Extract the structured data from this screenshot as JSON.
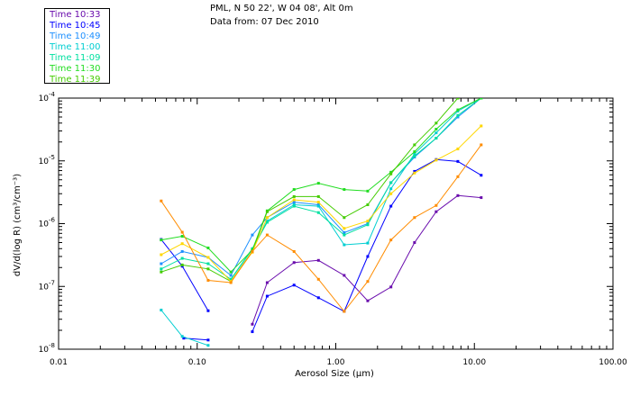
{
  "header": {
    "location": "PML, N 50 22', W 04 08', Alt 0m",
    "data_from": "Data from: 07 Dec 2010"
  },
  "colors": {
    "axis": "#000000",
    "plot_background": "#ffffff"
  },
  "chart_data": {
    "type": "line",
    "xlabel": "Aerosol Size (μm)",
    "ylabel": "dV/d(log R) (cm³/cm⁻³)",
    "xscale": "log",
    "yscale": "log",
    "xlim": [
      0.01,
      100
    ],
    "ylim": [
      1e-08,
      0.0001
    ],
    "grid": false,
    "legend_position": "top-left outside plot",
    "x_tick_labels": [
      "0.01",
      "0.10",
      "1.00",
      "10.00",
      "100.00"
    ],
    "y_tick_labels": [
      {
        "mantissa": "10",
        "exp": "-8"
      },
      {
        "mantissa": "10",
        "exp": "-7"
      },
      {
        "mantissa": "10",
        "exp": "-6"
      },
      {
        "mantissa": "10",
        "exp": "-5"
      },
      {
        "mantissa": "10",
        "exp": "-4"
      }
    ],
    "series": [
      {
        "name": "Time 10:33",
        "color": "#6a0dad",
        "segments": [
          [
            [
              0.25,
              2.5e-08
            ],
            [
              0.32,
              1.15e-07
            ],
            [
              0.5,
              2.4e-07
            ],
            [
              0.75,
              2.6e-07
            ],
            [
              1.15,
              1.5e-07
            ],
            [
              1.7,
              5.9e-08
            ],
            [
              2.5,
              9.8e-08
            ],
            [
              3.7,
              5e-07
            ],
            [
              5.3,
              1.55e-06
            ],
            [
              7.6,
              2.8e-06
            ],
            [
              11.2,
              2.6e-06
            ]
          ]
        ]
      },
      {
        "name": "Time 10:45",
        "color": "#0000ff",
        "segments": [
          [
            [
              0.055,
              5.6e-07
            ],
            [
              0.078,
              2.1e-07
            ],
            [
              0.12,
              4.1e-08
            ]
          ],
          [
            [
              0.08,
              1.5e-08
            ],
            [
              0.12,
              1.4e-08
            ]
          ],
          [
            [
              0.25,
              1.9e-08
            ],
            [
              0.32,
              7e-08
            ],
            [
              0.5,
              1.05e-07
            ],
            [
              0.75,
              6.6e-08
            ],
            [
              1.15,
              4e-08
            ],
            [
              1.7,
              3e-07
            ],
            [
              2.5,
              1.9e-06
            ],
            [
              3.7,
              6.8e-06
            ],
            [
              5.3,
              1.05e-05
            ],
            [
              7.6,
              9.8e-06
            ],
            [
              11.2,
              5.9e-06
            ]
          ]
        ]
      },
      {
        "name": "Time 10:49",
        "color": "#1e90ff",
        "segments": [
          [
            [
              0.055,
              2.3e-07
            ],
            [
              0.078,
              3.6e-07
            ],
            [
              0.12,
              2.9e-07
            ],
            [
              0.175,
              1.5e-07
            ],
            [
              0.25,
              6.6e-07
            ],
            [
              0.32,
              1.25e-06
            ],
            [
              0.5,
              2.2e-06
            ],
            [
              0.75,
              2e-06
            ],
            [
              1.15,
              7.2e-07
            ],
            [
              1.7,
              1e-06
            ],
            [
              2.5,
              4.5e-06
            ],
            [
              3.7,
              1.15e-05
            ],
            [
              5.3,
              2.3e-05
            ],
            [
              7.6,
              5e-05
            ],
            [
              11.2,
              0.0001
            ]
          ]
        ]
      },
      {
        "name": "Time 11:00",
        "color": "#00ced1",
        "segments": [
          [
            [
              0.055,
              4.2e-08
            ],
            [
              0.078,
              1.6e-08
            ],
            [
              0.12,
              1.15e-08
            ]
          ],
          [
            [
              0.175,
              1.3e-07
            ],
            [
              0.25,
              4e-07
            ],
            [
              0.32,
              1.1e-06
            ],
            [
              0.5,
              2e-06
            ],
            [
              0.75,
              1.9e-06
            ],
            [
              1.15,
              4.6e-07
            ],
            [
              1.7,
              4.9e-07
            ],
            [
              2.5,
              3.6e-06
            ],
            [
              3.7,
              1.3e-05
            ],
            [
              5.3,
              2.8e-05
            ],
            [
              7.6,
              6.2e-05
            ],
            [
              11.2,
              0.0001
            ]
          ]
        ]
      },
      {
        "name": "Time 11:09",
        "color": "#00e0a0",
        "segments": [
          [
            [
              0.055,
              1.9e-07
            ],
            [
              0.078,
              2.8e-07
            ],
            [
              0.12,
              2.3e-07
            ],
            [
              0.175,
              1.3e-07
            ],
            [
              0.25,
              3.9e-07
            ],
            [
              0.32,
              1.05e-06
            ],
            [
              0.5,
              1.9e-06
            ],
            [
              0.75,
              1.5e-06
            ],
            [
              1.15,
              6.6e-07
            ],
            [
              1.7,
              9.6e-07
            ],
            [
              2.5,
              4.5e-06
            ],
            [
              3.7,
              1.2e-05
            ],
            [
              5.3,
              2.3e-05
            ],
            [
              7.6,
              5.3e-05
            ],
            [
              11.2,
              0.0001
            ]
          ]
        ]
      },
      {
        "name": "Time 11:30",
        "color": "#22dd22",
        "segments": [
          [
            [
              0.055,
              5.5e-07
            ],
            [
              0.078,
              6.3e-07
            ],
            [
              0.12,
              4.1e-07
            ],
            [
              0.175,
              1.7e-07
            ],
            [
              0.25,
              3.8e-07
            ],
            [
              0.32,
              1.6e-06
            ],
            [
              0.5,
              3.5e-06
            ],
            [
              0.75,
              4.4e-06
            ],
            [
              1.15,
              3.5e-06
            ],
            [
              1.7,
              3.3e-06
            ],
            [
              2.5,
              6.6e-06
            ],
            [
              3.7,
              1.4e-05
            ],
            [
              5.3,
              3.2e-05
            ],
            [
              7.6,
              6.5e-05
            ],
            [
              11.2,
              0.0001
            ]
          ]
        ]
      },
      {
        "name": "Time 11:39",
        "color": "#44cc00",
        "segments": [
          [
            [
              0.055,
              1.7e-07
            ],
            [
              0.078,
              2.2e-07
            ],
            [
              0.12,
              1.9e-07
            ],
            [
              0.175,
              1.2e-07
            ],
            [
              0.25,
              3.6e-07
            ],
            [
              0.32,
              1.55e-06
            ],
            [
              0.5,
              2.7e-06
            ],
            [
              0.75,
              2.7e-06
            ],
            [
              1.15,
              1.25e-06
            ],
            [
              1.7,
              2e-06
            ],
            [
              2.5,
              6.2e-06
            ],
            [
              3.7,
              1.8e-05
            ],
            [
              5.3,
              4e-05
            ],
            [
              7.6,
              0.0001
            ]
          ]
        ]
      },
      {
        "name": "",
        "color": "#ffd700",
        "segments": [
          [
            [
              0.055,
              3.2e-07
            ],
            [
              0.078,
              4.8e-07
            ],
            [
              0.12,
              2.9e-07
            ],
            [
              0.175,
              1.2e-07
            ],
            [
              0.25,
              3.5e-07
            ],
            [
              0.32,
              1.25e-06
            ],
            [
              0.5,
              2.4e-06
            ],
            [
              0.75,
              2.2e-06
            ],
            [
              1.15,
              8.4e-07
            ],
            [
              1.7,
              1.1e-06
            ],
            [
              2.5,
              3e-06
            ],
            [
              3.7,
              6.4e-06
            ],
            [
              5.3,
              1.03e-05
            ],
            [
              7.6,
              1.55e-05
            ],
            [
              11.2,
              3.6e-05
            ]
          ]
        ]
      },
      {
        "name": "",
        "color": "#ff8c00",
        "segments": [
          [
            [
              0.055,
              2.3e-06
            ],
            [
              0.078,
              7.3e-07
            ],
            [
              0.12,
              1.25e-07
            ],
            [
              0.175,
              1.15e-07
            ],
            [
              0.25,
              3.6e-07
            ],
            [
              0.32,
              6.6e-07
            ],
            [
              0.5,
              3.6e-07
            ],
            [
              0.75,
              1.3e-07
            ],
            [
              1.15,
              4e-08
            ],
            [
              1.7,
              1.2e-07
            ],
            [
              2.5,
              5.5e-07
            ],
            [
              3.7,
              1.25e-06
            ],
            [
              5.3,
              1.95e-06
            ],
            [
              7.6,
              5.6e-06
            ],
            [
              11.2,
              1.8e-05
            ]
          ]
        ]
      }
    ]
  }
}
